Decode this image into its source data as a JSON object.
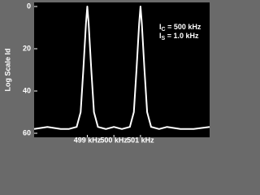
{
  "chart_data": {
    "type": "line",
    "y_label": "Log Scale Id",
    "annotations": [
      {
        "main": "I",
        "sub": "C",
        "rest": " = 500 kHz"
      },
      {
        "main": "I",
        "sub": "S",
        "rest": " = 1.0 kHz"
      }
    ],
    "x": [
      497,
      497.5,
      498,
      498.3,
      498.6,
      498.75,
      498.85,
      498.95,
      499,
      499.05,
      499.15,
      499.25,
      499.4,
      499.7,
      500,
      500.3,
      500.6,
      500.75,
      500.85,
      500.95,
      501,
      501.05,
      501.15,
      501.25,
      501.4,
      501.7,
      502,
      502.5,
      503,
      503.6
    ],
    "series": [
      {
        "color": "#ffffff",
        "values": [
          58,
          57,
          58,
          58,
          57,
          50,
          30,
          8,
          0,
          8,
          30,
          50,
          57,
          58,
          57,
          58,
          57,
          50,
          30,
          8,
          0,
          8,
          30,
          50,
          57,
          58,
          57,
          58,
          58,
          57
        ]
      }
    ],
    "xlim": [
      497,
      503.6
    ],
    "xticks": [
      {
        "value": 499,
        "label": "499 kHz"
      },
      {
        "value": 500,
        "label": "500 kHz"
      },
      {
        "value": 501,
        "label": "501 kHz"
      }
    ],
    "ylim": [
      0,
      60
    ],
    "y_inverted": true,
    "yticks": [
      0,
      20,
      40,
      60
    ]
  }
}
